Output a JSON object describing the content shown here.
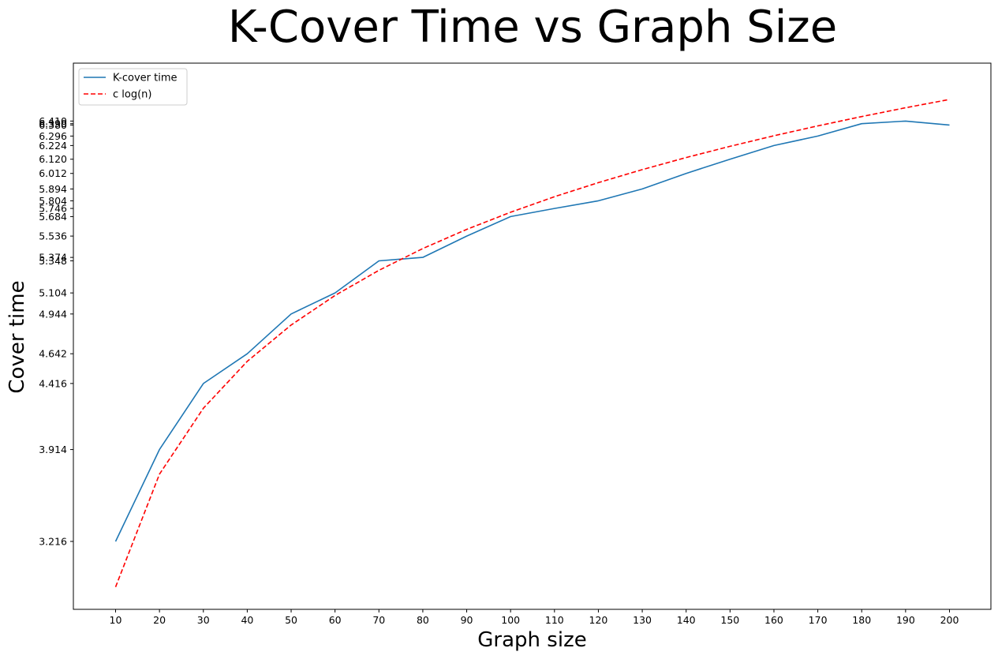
{
  "chart_data": {
    "type": "line",
    "title": "K-Cover Time vs Graph Size",
    "xlabel": "Graph size",
    "ylabel": "Cover time",
    "x": [
      10,
      20,
      30,
      40,
      50,
      60,
      70,
      80,
      90,
      100,
      110,
      120,
      130,
      140,
      150,
      160,
      170,
      180,
      190,
      200
    ],
    "x_ticks": [
      "10",
      "20",
      "30",
      "40",
      "50",
      "60",
      "70",
      "80",
      "90",
      "100",
      "110",
      "120",
      "130",
      "140",
      "150",
      "160",
      "170",
      "180",
      "190",
      "200"
    ],
    "y_ticks": [
      "3.216",
      "3.914",
      "4.416",
      "4.642",
      "4.944",
      "5.104",
      "5.348",
      "5.374",
      "5.536",
      "5.684",
      "5.746",
      "5.804",
      "5.894",
      "6.012",
      "6.120",
      "6.224",
      "6.296",
      "6.380",
      "6.390",
      "6.410"
    ],
    "xlim": [
      0,
      210
    ],
    "ylim": [
      2.7,
      6.85
    ],
    "grid": false,
    "legend_position": "top-left",
    "series": [
      {
        "name": "K-cover time",
        "color": "#1f77b4",
        "style": "solid",
        "values": [
          3.216,
          3.914,
          4.416,
          4.642,
          4.944,
          5.104,
          5.348,
          5.374,
          5.536,
          5.684,
          5.746,
          5.804,
          5.894,
          6.012,
          6.12,
          6.224,
          6.296,
          6.39,
          6.41,
          6.38
        ]
      },
      {
        "name": "c log(n)",
        "color": "#ff0000",
        "style": "dashed",
        "values": [
          2.87,
          3.727,
          4.228,
          4.584,
          4.86,
          5.085,
          5.276,
          5.441,
          5.587,
          5.717,
          5.835,
          5.942,
          6.041,
          6.133,
          6.218,
          6.298,
          6.373,
          6.444,
          6.511,
          6.574
        ]
      }
    ]
  }
}
